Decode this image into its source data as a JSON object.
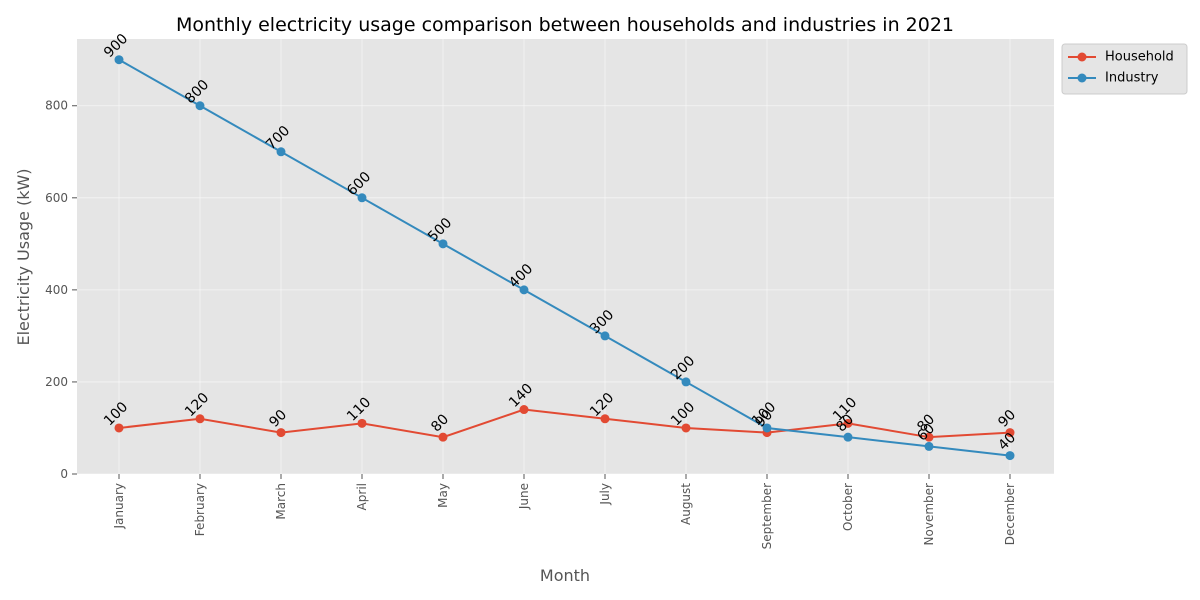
{
  "chart_data": {
    "type": "line",
    "title": "Monthly electricity usage comparison between households and industries in 2021",
    "xlabel": "Month",
    "ylabel": "Electricity Usage (kW)",
    "categories": [
      "January",
      "February",
      "March",
      "April",
      "May",
      "June",
      "July",
      "August",
      "September",
      "October",
      "November",
      "December"
    ],
    "series": [
      {
        "name": "Household",
        "color": "#E24A33",
        "values": [
          100,
          120,
          90,
          110,
          80,
          140,
          120,
          100,
          90,
          110,
          80,
          90
        ]
      },
      {
        "name": "Industry",
        "color": "#348ABD",
        "values": [
          900,
          800,
          700,
          600,
          500,
          400,
          300,
          200,
          100,
          80,
          60,
          40
        ]
      }
    ],
    "ylim": [
      0,
      945
    ],
    "yticks": [
      0,
      200,
      400,
      600,
      800
    ],
    "grid": true,
    "legend": "top-right outside",
    "colors": {
      "background": "#E5E5E5",
      "grid": "#FFFFFF",
      "tick": "#555555"
    }
  }
}
